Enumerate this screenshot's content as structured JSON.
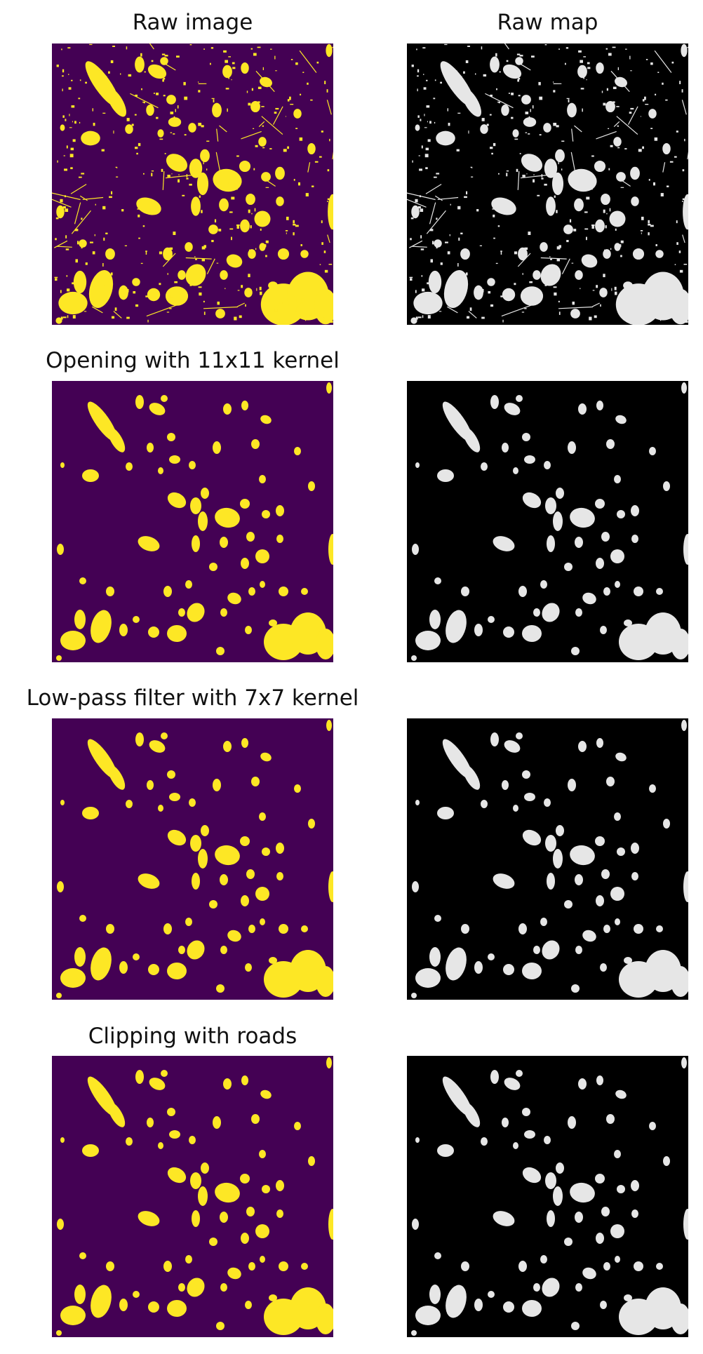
{
  "figure": {
    "titles": {
      "r0c0": "Raw image",
      "r0c1": "Raw map",
      "r1c0": "Opening with 11x11 kernel",
      "r2c0": "Low-pass filter with 7x7 kernel",
      "r3c0": "Clipping with roads"
    },
    "colors": {
      "mask_background": "#440154",
      "mask_foreground": "#fde725",
      "map_background": "#000000",
      "map_foreground": "#e6e6e6"
    }
  }
}
